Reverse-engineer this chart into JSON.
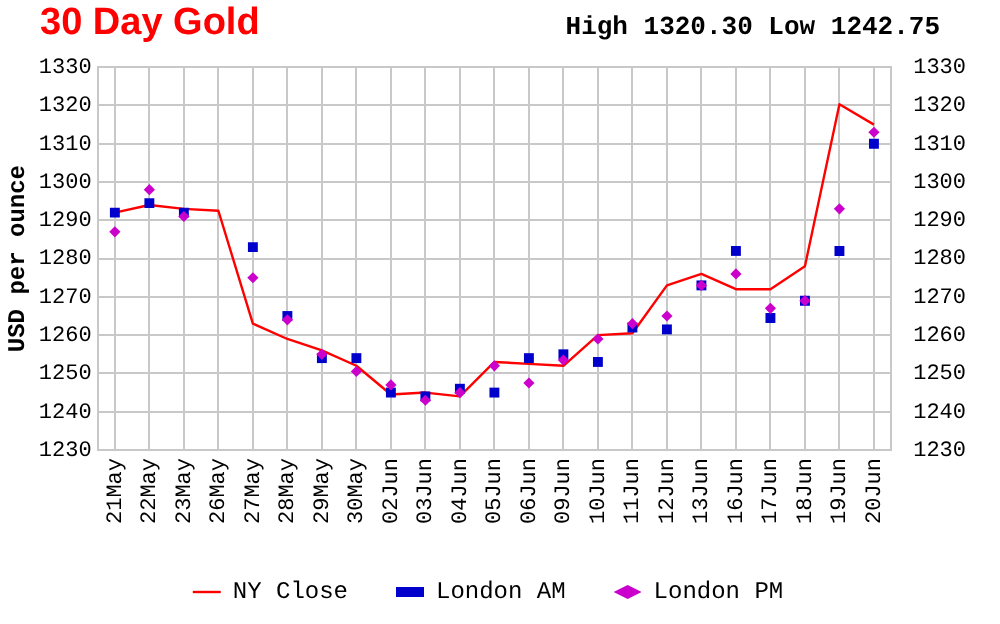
{
  "chart_data": {
    "type": "line",
    "title": "30 Day Gold",
    "subtitle": "High 1320.30 Low 1242.75",
    "ylabel": "USD per ounce",
    "categories": [
      "21May",
      "22May",
      "23May",
      "26May",
      "27May",
      "28May",
      "29May",
      "30May",
      "02Jun",
      "03Jun",
      "04Jun",
      "05Jun",
      "06Jun",
      "09Jun",
      "10Jun",
      "11Jun",
      "12Jun",
      "13Jun",
      "16Jun",
      "17Jun",
      "18Jun",
      "19Jun",
      "20Jun"
    ],
    "series": [
      {
        "name": "NY Close",
        "type": "line",
        "marker": "none",
        "color": "#ff0000",
        "values": [
          1292,
          1294,
          1293,
          1292.5,
          1263,
          1259,
          1256,
          1252,
          1244.5,
          1245,
          1244,
          1253,
          1252.5,
          1252,
          1260,
          1260.5,
          1273,
          1276,
          1272,
          1272,
          1278,
          1320.3,
          1315
        ]
      },
      {
        "name": "London AM",
        "type": "scatter",
        "marker": "square",
        "color": "#0000cc",
        "values": [
          1292,
          1294.5,
          1292,
          null,
          1283,
          1265,
          1254,
          1254,
          1245,
          1244,
          1246,
          1245,
          1254,
          1255,
          1253,
          1262,
          1261.5,
          1273,
          1282,
          1264.5,
          1269,
          1282,
          1310
        ]
      },
      {
        "name": "London PM",
        "type": "scatter",
        "marker": "diamond",
        "color": "#cc00cc",
        "values": [
          1287,
          1298,
          1291,
          null,
          1275,
          1264,
          1255,
          1250.5,
          1247,
          1243,
          1245,
          1252,
          1247.5,
          1253.5,
          1259,
          1263,
          1265,
          1273,
          1276,
          1267,
          1269,
          1293,
          1313
        ]
      }
    ],
    "ylim": [
      1230,
      1330
    ],
    "yticks": [
      1230,
      1240,
      1250,
      1260,
      1270,
      1280,
      1290,
      1300,
      1310,
      1320,
      1330
    ],
    "y2lim": [
      1230,
      1330
    ],
    "y2ticks": [
      1230,
      1240,
      1250,
      1260,
      1270,
      1280,
      1290,
      1300,
      1310,
      1320,
      1330
    ],
    "grid": true,
    "legend": "bottom"
  }
}
